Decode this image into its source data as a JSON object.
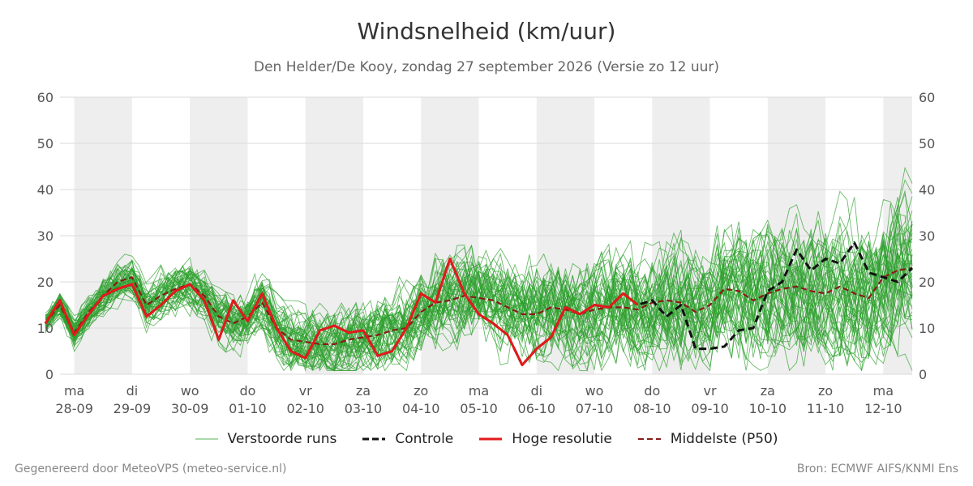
{
  "chart_data": {
    "type": "line",
    "title": "Windsnelheid (km/uur)",
    "subtitle": "Den Helder/De Kooy, zondag 27 september 2026 (Versie zo 12 uur)",
    "ylim": [
      0,
      60
    ],
    "yticks": [
      0,
      10,
      20,
      30,
      40,
      50,
      60
    ],
    "y_right_axis": true,
    "grid": true,
    "legend_position": "bottom",
    "x_start": "2026-09-27",
    "x_end_day": 15.5,
    "day_labels": [
      {
        "day": 1,
        "weekday": "ma",
        "date": "28-09"
      },
      {
        "day": 2,
        "weekday": "di",
        "date": "29-09"
      },
      {
        "day": 3,
        "weekday": "wo",
        "date": "30-09"
      },
      {
        "day": 4,
        "weekday": "do",
        "date": "01-10"
      },
      {
        "day": 5,
        "weekday": "vr",
        "date": "02-10"
      },
      {
        "day": 6,
        "weekday": "za",
        "date": "03-10"
      },
      {
        "day": 7,
        "weekday": "zo",
        "date": "04-10"
      },
      {
        "day": 8,
        "weekday": "ma",
        "date": "05-10"
      },
      {
        "day": 9,
        "weekday": "di",
        "date": "06-10"
      },
      {
        "day": 10,
        "weekday": "wo",
        "date": "07-10"
      },
      {
        "day": 11,
        "weekday": "do",
        "date": "08-10"
      },
      {
        "day": 12,
        "weekday": "vr",
        "date": "09-10"
      },
      {
        "day": 13,
        "weekday": "za",
        "date": "10-10"
      },
      {
        "day": 14,
        "weekday": "zo",
        "date": "11-10"
      },
      {
        "day": 15,
        "weekday": "ma",
        "date": "12-10"
      }
    ],
    "night_bands": [
      [
        1,
        2
      ],
      [
        3,
        4
      ],
      [
        5,
        6
      ],
      [
        7,
        8
      ],
      [
        9,
        10
      ],
      [
        11,
        12
      ],
      [
        13,
        14
      ],
      [
        15,
        15.5
      ]
    ],
    "ensemble_members": 50,
    "ensemble_color": "#2ca02c",
    "series": [
      {
        "name": "Controle",
        "style": "dashed",
        "color": "#111111",
        "x": [
          0.5,
          0.75,
          1.0,
          1.25,
          1.5,
          1.75,
          2.0,
          2.25,
          2.5,
          2.75,
          3.0,
          3.25,
          3.5,
          3.75,
          4.0,
          4.25,
          4.5,
          4.75,
          5.0,
          5.25,
          5.5,
          5.75,
          6.0,
          6.25,
          6.5,
          6.75,
          7.0,
          7.25,
          7.5,
          7.75,
          8.0,
          8.25,
          8.5,
          8.75,
          9.0,
          9.25,
          9.5,
          9.75,
          10.0,
          10.25,
          10.5,
          10.75,
          11.0,
          11.25,
          11.5,
          11.75,
          12.0,
          12.25,
          12.5,
          12.75,
          13.0,
          13.25,
          13.5,
          13.75,
          14.0,
          14.25,
          14.5,
          14.75,
          15.0,
          15.25,
          15.5
        ],
        "values": [
          11.0,
          16.0,
          8.5,
          13.0,
          17.0,
          18.5,
          19.5,
          12.5,
          15.0,
          18.0,
          19.5,
          16.0,
          7.5,
          16.0,
          11.5,
          17.5,
          10.0,
          5.0,
          3.5,
          9.5,
          10.5,
          9.0,
          9.5,
          4.0,
          5.0,
          10.0,
          17.5,
          15.5,
          25.0,
          17.5,
          13.0,
          11.0,
          8.5,
          2.0,
          5.5,
          8.0,
          14.5,
          13.0,
          15.0,
          14.5,
          17.5,
          15.0,
          16.0,
          12.5,
          15.0,
          5.5,
          5.5,
          6.0,
          9.5,
          10.0,
          18.0,
          20.0,
          27.0,
          22.5,
          25.0,
          24.0,
          28.5,
          22.0,
          21.0,
          20.0,
          23.0
        ]
      },
      {
        "name": "Hoge resolutie",
        "style": "solid",
        "color": "#e31a1c",
        "x": [
          0.5,
          0.75,
          1.0,
          1.25,
          1.5,
          1.75,
          2.0,
          2.25,
          2.5,
          2.75,
          3.0,
          3.25,
          3.5,
          3.75,
          4.0,
          4.25,
          4.5,
          4.75,
          5.0,
          5.25,
          5.5,
          5.75,
          6.0,
          6.25,
          6.5,
          6.75,
          7.0,
          7.25,
          7.5,
          7.75,
          8.0,
          8.25,
          8.5,
          8.75,
          9.0,
          9.25,
          9.5,
          9.75,
          10.0,
          10.25,
          10.5,
          10.75
        ],
        "values": [
          11.0,
          16.0,
          8.5,
          13.0,
          17.0,
          18.5,
          19.5,
          12.5,
          15.0,
          18.0,
          19.5,
          16.0,
          7.5,
          16.0,
          11.5,
          17.5,
          10.0,
          5.0,
          3.5,
          9.5,
          10.5,
          9.0,
          9.5,
          4.0,
          5.0,
          10.0,
          17.5,
          15.5,
          25.0,
          17.5,
          13.0,
          11.0,
          8.5,
          2.0,
          5.5,
          8.0,
          14.5,
          13.0,
          15.0,
          14.5,
          17.5,
          15.0
        ]
      },
      {
        "name": "Middelste (P50)",
        "style": "dashed",
        "color": "#8b1a1a",
        "x": [
          0.5,
          0.75,
          1.0,
          1.25,
          1.5,
          1.75,
          2.0,
          2.25,
          2.5,
          2.75,
          3.0,
          3.25,
          3.5,
          3.75,
          4.0,
          4.25,
          4.5,
          4.75,
          5.0,
          5.25,
          5.5,
          5.75,
          6.0,
          6.25,
          6.5,
          6.75,
          7.0,
          7.25,
          7.5,
          7.75,
          8.0,
          8.25,
          8.5,
          8.75,
          9.0,
          9.25,
          9.5,
          9.75,
          10.0,
          10.25,
          10.5,
          10.75,
          11.0,
          11.25,
          11.5,
          11.75,
          12.0,
          12.25,
          12.5,
          12.75,
          13.0,
          13.25,
          13.5,
          13.75,
          14.0,
          14.25,
          14.5,
          14.75,
          15.0,
          15.25,
          15.5
        ],
        "values": [
          11.0,
          15.0,
          9.0,
          13.5,
          17.0,
          20.0,
          21.0,
          15.0,
          17.0,
          18.5,
          19.5,
          17.0,
          12.5,
          11.0,
          12.5,
          15.5,
          10.0,
          7.5,
          7.0,
          6.5,
          6.5,
          7.5,
          8.0,
          8.5,
          9.5,
          10.0,
          13.5,
          15.5,
          16.0,
          17.0,
          16.5,
          16.0,
          14.5,
          13.0,
          13.0,
          14.5,
          14.0,
          13.0,
          14.0,
          14.5,
          14.5,
          14.0,
          15.5,
          16.0,
          15.5,
          13.5,
          15.0,
          18.5,
          18.0,
          16.0,
          17.5,
          18.5,
          19.0,
          18.0,
          17.5,
          19.0,
          17.5,
          16.5,
          21.0,
          22.5,
          23.0
        ]
      }
    ],
    "legend": [
      "Verstoorde runs",
      "Controle",
      "Hoge resolutie",
      "Middelste (P50)"
    ]
  },
  "footer": {
    "left": "Gegenereerd door MeteoVPS (meteo-service.nl)",
    "right": "Bron: ECMWF AIFS/KNMI Ens"
  }
}
